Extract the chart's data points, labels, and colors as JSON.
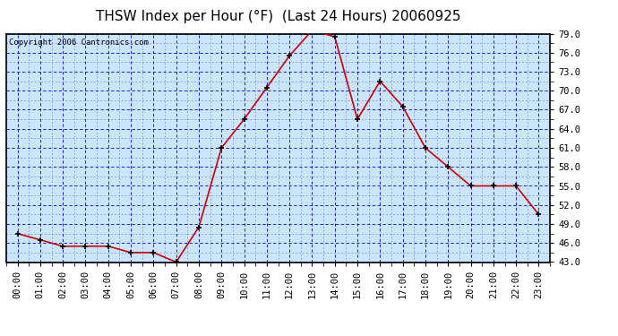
{
  "title": "THSW Index per Hour (°F)  (Last 24 Hours) 20060925",
  "copyright": "Copyright 2006 Cantronics.com",
  "x_labels": [
    "00:00",
    "01:00",
    "02:00",
    "03:00",
    "04:00",
    "05:00",
    "06:00",
    "07:00",
    "08:00",
    "09:00",
    "10:00",
    "11:00",
    "12:00",
    "13:00",
    "14:00",
    "15:00",
    "16:00",
    "17:00",
    "18:00",
    "19:00",
    "20:00",
    "21:00",
    "22:00",
    "23:00"
  ],
  "y_values": [
    47.5,
    46.5,
    45.5,
    45.5,
    45.5,
    44.5,
    44.5,
    43.0,
    48.5,
    61.0,
    65.5,
    70.5,
    75.5,
    79.5,
    78.5,
    65.5,
    71.5,
    67.5,
    61.0,
    58.0,
    55.0,
    55.0,
    55.0,
    50.5
  ],
  "y_ticks": [
    43.0,
    46.0,
    49.0,
    52.0,
    55.0,
    58.0,
    61.0,
    64.0,
    67.0,
    70.0,
    73.0,
    76.0,
    79.0
  ],
  "ylim": [
    43.0,
    79.0
  ],
  "line_color": "#cc0000",
  "marker_color": "#000000",
  "bg_color": "#cce5ff",
  "fig_bg": "#ffffff",
  "grid_color": "#0000cc",
  "title_color": "#000000",
  "title_fontsize": 11,
  "copyright_fontsize": 6.5,
  "tick_fontsize": 7.5
}
